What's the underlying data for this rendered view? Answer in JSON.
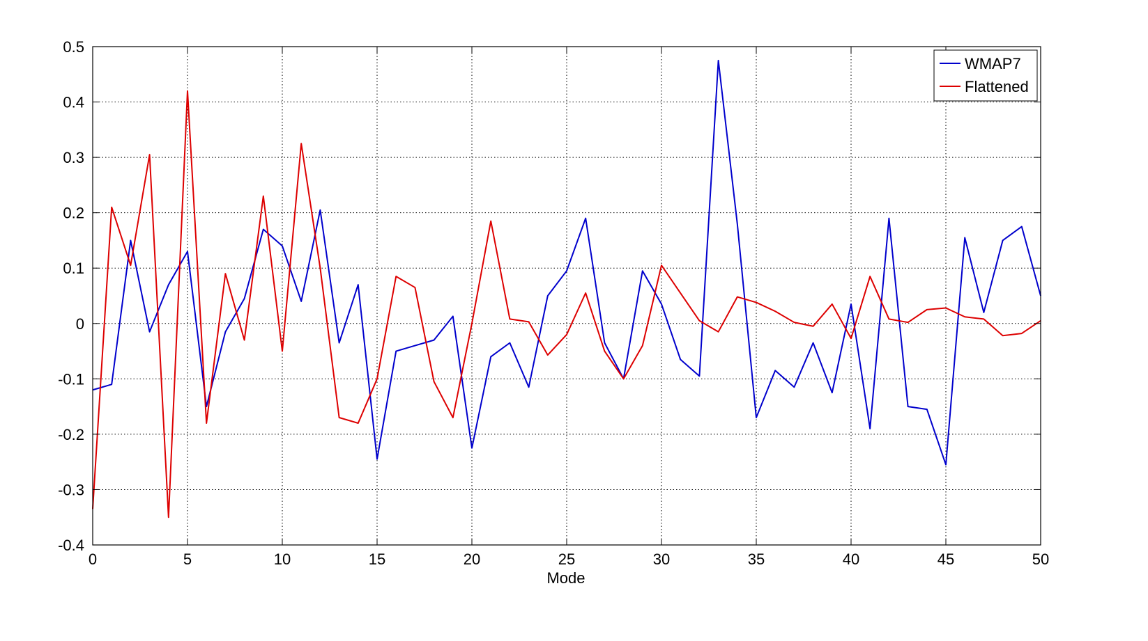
{
  "chart_data": {
    "type": "line",
    "title": "",
    "xlabel": "Mode",
    "ylabel": "",
    "xlim": [
      0,
      50
    ],
    "ylim": [
      -0.4,
      0.5
    ],
    "grid": true,
    "legend_position": "top-right",
    "x_ticks": [
      0,
      5,
      10,
      15,
      20,
      25,
      30,
      35,
      40,
      45,
      50
    ],
    "x_tick_labels": [
      "0",
      "5",
      "10",
      "15",
      "20",
      "25",
      "30",
      "35",
      "40",
      "45",
      "50"
    ],
    "y_ticks": [
      -0.4,
      -0.3,
      -0.2,
      -0.1,
      0,
      0.1,
      0.2,
      0.3,
      0.4,
      0.5
    ],
    "y_tick_labels": [
      "-0.4",
      "-0.3",
      "-0.2",
      "-0.1",
      "0",
      "0.1",
      "0.2",
      "0.3",
      "0.4",
      "0.5"
    ],
    "x": [
      0,
      1,
      2,
      3,
      4,
      5,
      6,
      7,
      8,
      9,
      10,
      11,
      12,
      13,
      14,
      15,
      16,
      17,
      18,
      19,
      20,
      21,
      22,
      23,
      24,
      25,
      26,
      27,
      28,
      29,
      30,
      31,
      32,
      33,
      34,
      35,
      36,
      37,
      38,
      39,
      40,
      41,
      42,
      43,
      44,
      45,
      46,
      47,
      48,
      49,
      50
    ],
    "series": [
      {
        "name": "WMAP7",
        "color": "#0000cc",
        "values": [
          -0.12,
          -0.11,
          0.15,
          -0.015,
          0.07,
          0.13,
          -0.15,
          -0.015,
          0.045,
          0.17,
          0.14,
          0.04,
          0.205,
          -0.035,
          0.07,
          -0.245,
          -0.05,
          -0.04,
          -0.03,
          0.013,
          -0.225,
          -0.06,
          -0.035,
          -0.115,
          0.05,
          0.095,
          0.19,
          -0.035,
          -0.1,
          0.095,
          0.035,
          -0.065,
          -0.095,
          0.475,
          0.18,
          -0.17,
          -0.085,
          -0.115,
          -0.035,
          -0.125,
          0.035,
          -0.19,
          0.19,
          -0.15,
          -0.155,
          -0.255,
          0.155,
          0.02,
          0.15,
          0.175,
          0.05
        ]
      },
      {
        "name": "Flattened",
        "color": "#dd0000",
        "values": [
          -0.335,
          0.21,
          0.105,
          0.305,
          -0.35,
          0.42,
          -0.18,
          0.09,
          -0.03,
          0.23,
          -0.05,
          0.325,
          0.1,
          -0.17,
          -0.18,
          -0.1,
          0.085,
          0.065,
          -0.105,
          -0.17,
          0.0,
          0.185,
          0.008,
          0.003,
          -0.057,
          -0.02,
          0.055,
          -0.05,
          -0.1,
          -0.04,
          0.105,
          0.055,
          0.005,
          -0.015,
          0.048,
          0.038,
          0.022,
          0.002,
          -0.005,
          0.035,
          -0.027,
          0.085,
          0.008,
          0.002,
          0.025,
          0.028,
          0.012,
          0.008,
          -0.022,
          -0.018,
          0.005
        ]
      }
    ]
  }
}
